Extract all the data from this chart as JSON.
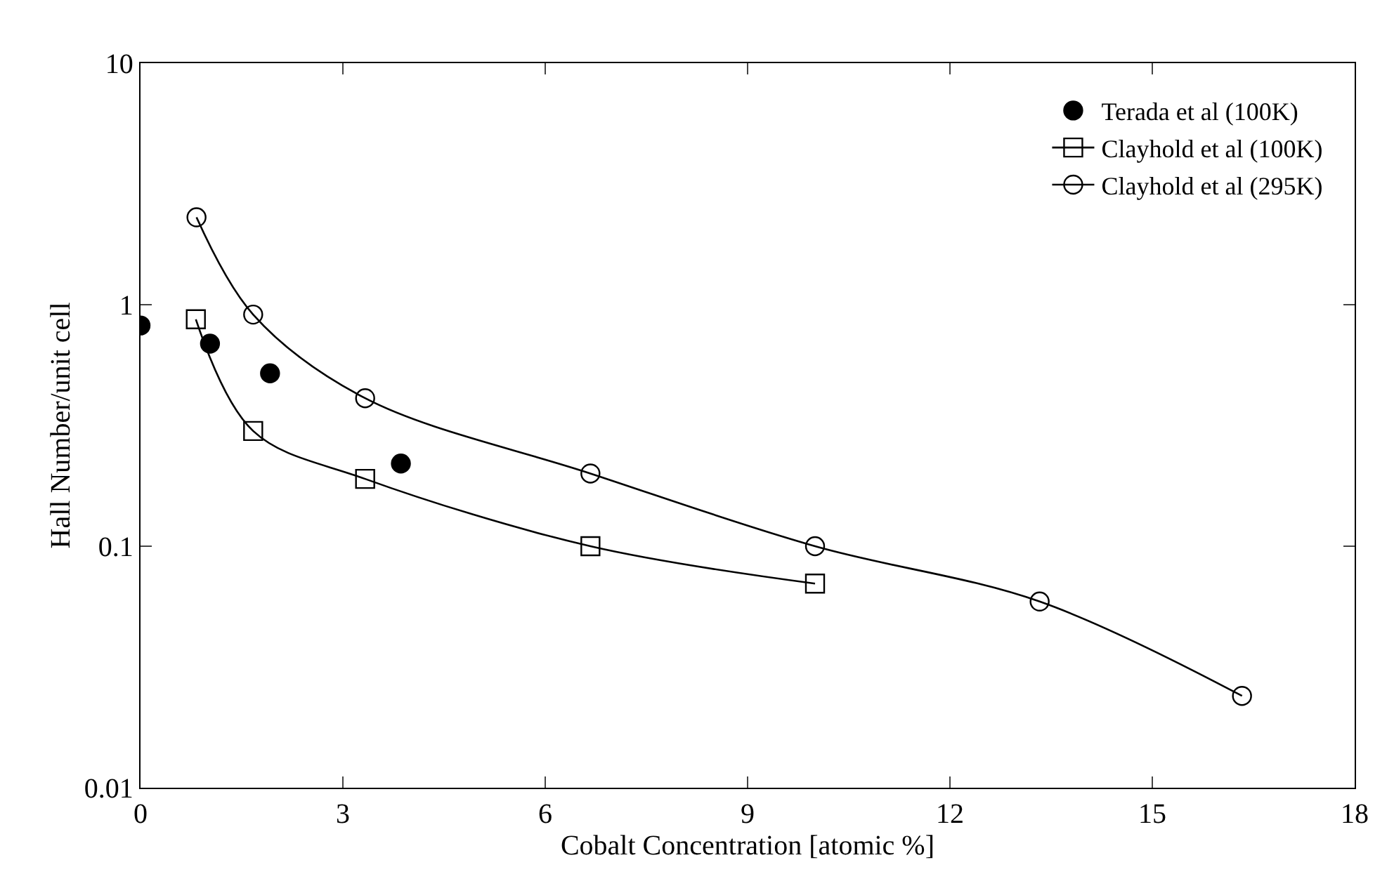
{
  "chart_data": {
    "type": "line",
    "xlabel": "Cobalt Concentration [atomic %]",
    "ylabel": "Hall Number/unit cell",
    "xlim": [
      0,
      18
    ],
    "xticks": [
      0,
      3,
      6,
      9,
      12,
      15,
      18
    ],
    "ylim": [
      0.01,
      10
    ],
    "yticks": [
      0.01,
      0.1,
      1,
      10
    ],
    "log": "y",
    "legend": "top right",
    "series": [
      {
        "name": "Terada et al (100K)",
        "type": "scatter",
        "marker": "circle",
        "color": "#000000",
        "x": [
          0,
          1.03,
          1.92,
          3.86
        ],
        "values": [
          0.82,
          0.69,
          0.52,
          0.22
        ]
      },
      {
        "name": "Clayhold et al (100K)",
        "marker": "square",
        "color": "#000000",
        "x": [
          0.82,
          1.67,
          3.33,
          6.67,
          10
        ],
        "values": [
          0.87,
          0.3,
          0.19,
          0.1,
          0.07
        ]
      },
      {
        "name": "Clayhold et al (295K)",
        "marker": "circle",
        "color": "#000000",
        "x": [
          0.83,
          1.67,
          3.33,
          6.67,
          10,
          13.33,
          16.33
        ],
        "values": [
          2.3,
          0.91,
          0.41,
          0.2,
          0.1,
          0.059,
          0.024
        ]
      }
    ]
  }
}
